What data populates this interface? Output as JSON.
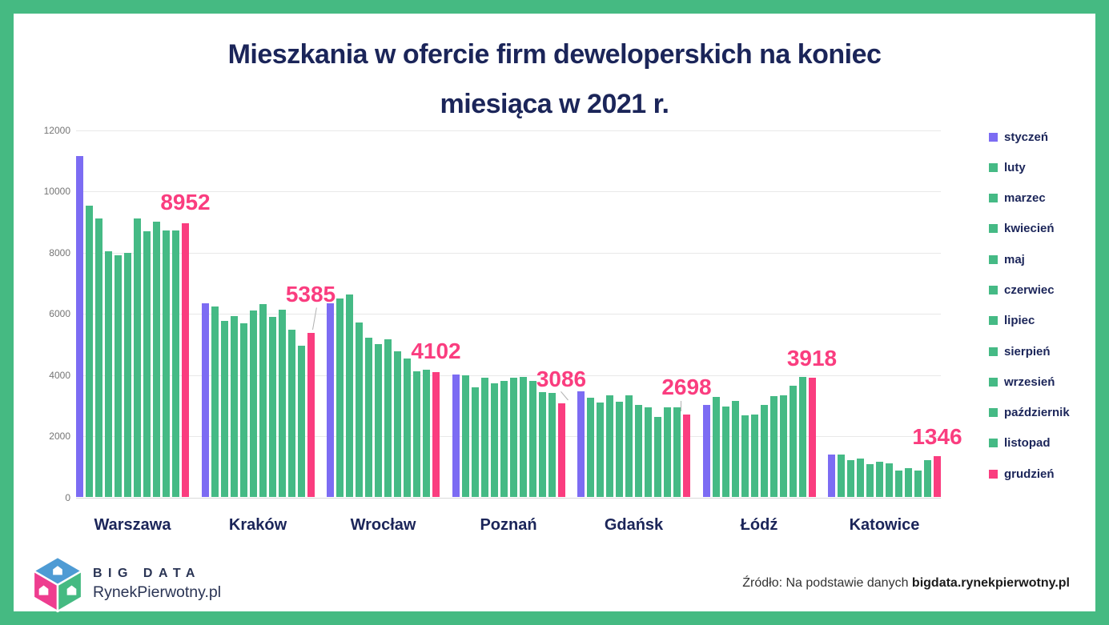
{
  "page": {
    "title_line1": "Mieszkania w ofercie firm deweloperskich na koniec",
    "title_line2": "miesiąca w 2021 r."
  },
  "colors": {
    "january": "#7c6cf3",
    "feb_to_nov": "#45ba85",
    "december": "#fa3d7f",
    "navy_text": "#1b2559",
    "annotation_pink": "#fa3d7f",
    "border_green": "#45ba82",
    "axis_text": "#757575",
    "gridline": "#e8e8e8",
    "logo_blue": "#4e9bd4",
    "logo_pink": "#ee3d8f",
    "logo_green": "#45ba82"
  },
  "chart_data": {
    "type": "bar",
    "title": "Mieszkania w ofercie firm deweloperskich na koniec miesiąca w 2021 r.",
    "categories": [
      "Warszawa",
      "Kraków",
      "Wrocław",
      "Poznań",
      "Gdańsk",
      "Łódź",
      "Katowice"
    ],
    "ylim": [
      0,
      12000
    ],
    "yticks": [
      0,
      2000,
      4000,
      6000,
      8000,
      10000,
      12000
    ],
    "gridlines": true,
    "legend_position": "right",
    "series": [
      {
        "name": "styczeń",
        "color": "#7c6cf3",
        "values": [
          11150,
          6340,
          6350,
          4020,
          3460,
          3020,
          1390
        ]
      },
      {
        "name": "luty",
        "color": "#45ba85",
        "values": [
          9540,
          6250,
          6500,
          4000,
          3260,
          3290,
          1410
        ]
      },
      {
        "name": "marzec",
        "color": "#45ba85",
        "values": [
          9110,
          5780,
          6630,
          3590,
          3090,
          2980,
          1210
        ]
      },
      {
        "name": "kwiecień",
        "color": "#45ba85",
        "values": [
          8040,
          5920,
          5710,
          3910,
          3330,
          3160,
          1260
        ]
      },
      {
        "name": "maj",
        "color": "#45ba85",
        "values": [
          7920,
          5700,
          5230,
          3730,
          3130,
          2680,
          1090
        ]
      },
      {
        "name": "czerwiec",
        "color": "#45ba85",
        "values": [
          7990,
          6100,
          5000,
          3810,
          3340,
          2720,
          1170
        ]
      },
      {
        "name": "lipiec",
        "color": "#45ba85",
        "values": [
          9130,
          6320,
          5160,
          3920,
          3020,
          3010,
          1100
        ]
      },
      {
        "name": "sierpień",
        "color": "#45ba85",
        "values": [
          8690,
          5900,
          4770,
          3940,
          2940,
          3320,
          870
        ]
      },
      {
        "name": "wrzesień",
        "color": "#45ba85",
        "values": [
          9010,
          6150,
          4530,
          3810,
          2640,
          3330,
          950
        ]
      },
      {
        "name": "październik",
        "color": "#45ba85",
        "values": [
          8730,
          5480,
          4130,
          3440,
          2950,
          3650,
          870
        ]
      },
      {
        "name": "listopad",
        "color": "#45ba85",
        "values": [
          8730,
          4950,
          4180,
          3420,
          2950,
          3950,
          1220
        ]
      },
      {
        "name": "grudzień",
        "color": "#fa3d7f",
        "values": [
          8952,
          5385,
          4102,
          3086,
          2698,
          3918,
          1346
        ]
      }
    ],
    "december_labels": [
      8952,
      5385,
      4102,
      3086,
      2698,
      3918,
      1346
    ]
  },
  "footer": {
    "logo_text_top": "BIG DATA",
    "logo_text_bottom": "RynekPierwotny.pl",
    "source_prefix": "Źródło: Na podstawie danych ",
    "source_domain": "bigdata.rynekpierwotny.pl"
  }
}
